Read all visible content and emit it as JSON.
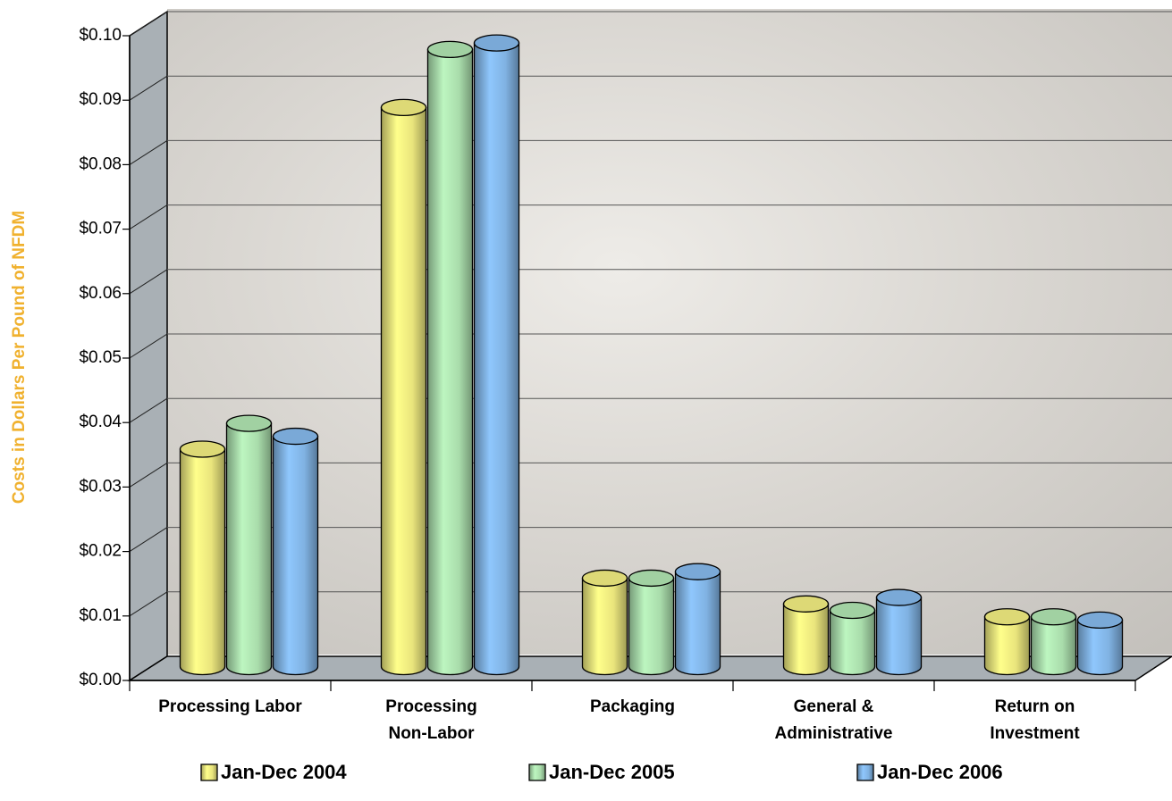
{
  "chart_data": {
    "type": "bar",
    "y_label": "Costs in Dollars Per Pound of NFDM",
    "categories": [
      "Processing Labor",
      "Processing\nNon-Labor",
      "Packaging",
      "General &\nAdministrative",
      "Return on\nInvestment"
    ],
    "series": [
      {
        "name": "Jan-Dec 2004",
        "color": "#e9e47c",
        "values": [
          0.034,
          0.087,
          0.014,
          0.01,
          0.008
        ]
      },
      {
        "name": "Jan-Dec 2005",
        "color": "#a9dcab",
        "values": [
          0.038,
          0.096,
          0.014,
          0.009,
          0.008
        ]
      },
      {
        "name": "Jan-Dec 2006",
        "color": "#80b2e2",
        "values": [
          0.036,
          0.097,
          0.015,
          0.011,
          0.0075
        ]
      }
    ],
    "ylim": [
      0,
      0.1
    ],
    "yticks": [
      {
        "value": 0,
        "label": "$0.00"
      },
      {
        "value": 0.01,
        "label": "$0.01"
      },
      {
        "value": 0.02,
        "label": "$0.02"
      },
      {
        "value": 0.03,
        "label": "$0.03"
      },
      {
        "value": 0.04,
        "label": "$0.04"
      },
      {
        "value": 0.05,
        "label": "$0.05"
      },
      {
        "value": 0.06,
        "label": "$0.06"
      },
      {
        "value": 0.07,
        "label": "$0.07"
      },
      {
        "value": 0.08,
        "label": "$0.08"
      },
      {
        "value": 0.09,
        "label": "$0.09"
      },
      {
        "value": 0.1,
        "label": "$0.10"
      }
    ],
    "grid": true
  }
}
